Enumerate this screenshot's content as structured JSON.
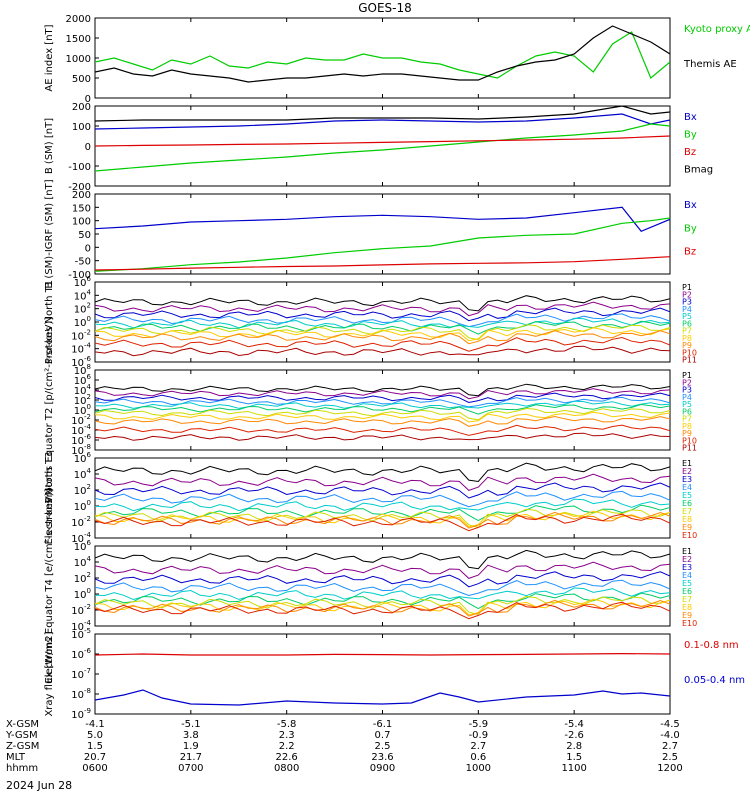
{
  "title": "GOES-18",
  "date_label": "2024 Jun 28",
  "footer": {
    "rows": [
      {
        "label": "X-GSM",
        "values": [
          "-4.1",
          "-5.1",
          "-5.8",
          "-6.1",
          "-5.9",
          "-5.4",
          "-4.5"
        ]
      },
      {
        "label": "Y-GSM",
        "values": [
          "5.0",
          "3.8",
          "2.3",
          "0.7",
          "-0.9",
          "-2.6",
          "-4.0"
        ]
      },
      {
        "label": "Z-GSM",
        "values": [
          "1.5",
          "1.9",
          "2.2",
          "2.5",
          "2.7",
          "2.8",
          "2.7"
        ]
      },
      {
        "label": "MLT",
        "values": [
          "20.7",
          "21.7",
          "22.6",
          "23.6",
          "0.6",
          "1.5",
          "2.5"
        ]
      },
      {
        "label": "hhmm",
        "values": [
          "0600",
          "0700",
          "0800",
          "0900",
          "1000",
          "1100",
          "1200"
        ]
      }
    ]
  },
  "chart_data": [
    {
      "id": "ae",
      "type": "line",
      "ylabel": "AE index [nT]",
      "ylim": [
        0,
        2000
      ],
      "yticks": [
        "0",
        "500",
        "1000",
        "1500",
        "2000"
      ],
      "x_range_hours": [
        6,
        12
      ],
      "series": [
        {
          "name": "Kyoto proxy AE",
          "color": "#00cc00",
          "x": [
            6.0,
            6.2,
            6.4,
            6.6,
            6.8,
            7.0,
            7.2,
            7.4,
            7.6,
            7.8,
            8.0,
            8.2,
            8.4,
            8.6,
            8.8,
            9.0,
            9.2,
            9.4,
            9.6,
            9.8,
            10.0,
            10.2,
            10.4,
            10.6,
            10.8,
            11.0,
            11.2,
            11.4,
            11.6,
            11.8,
            12.0
          ],
          "y": [
            900,
            1000,
            850,
            700,
            950,
            850,
            1050,
            800,
            750,
            900,
            850,
            1000,
            950,
            950,
            1100,
            1000,
            1000,
            900,
            850,
            700,
            600,
            500,
            800,
            1050,
            1150,
            1050,
            650,
            1350,
            1650,
            500,
            900
          ]
        },
        {
          "name": "Themis AE",
          "color": "#000000",
          "x": [
            6.0,
            6.2,
            6.4,
            6.6,
            6.8,
            7.0,
            7.2,
            7.4,
            7.6,
            7.8,
            8.0,
            8.2,
            8.4,
            8.6,
            8.8,
            9.0,
            9.2,
            9.4,
            9.6,
            9.8,
            10.0,
            10.2,
            10.4,
            10.6,
            10.8,
            11.0,
            11.2,
            11.4,
            11.6,
            11.8,
            12.0
          ],
          "y": [
            650,
            750,
            600,
            550,
            700,
            600,
            550,
            500,
            400,
            450,
            500,
            500,
            550,
            600,
            550,
            600,
            600,
            550,
            500,
            450,
            450,
            650,
            800,
            900,
            950,
            1100,
            1500,
            1800,
            1600,
            1400,
            1100
          ]
        }
      ]
    },
    {
      "id": "bfield",
      "type": "line",
      "ylabel": "B (SM) [nT]",
      "ylim": [
        -200,
        200
      ],
      "yticks": [
        "-200",
        "-100",
        "0",
        "100",
        "200"
      ],
      "x_range_hours": [
        6,
        12
      ],
      "series": [
        {
          "name": "Bx",
          "color": "#0000cc",
          "x": [
            6.0,
            6.5,
            7.0,
            7.5,
            8.0,
            8.5,
            9.0,
            9.5,
            10.0,
            10.5,
            11.0,
            11.5,
            11.8,
            12.0
          ],
          "y": [
            85,
            90,
            95,
            100,
            110,
            125,
            130,
            125,
            120,
            125,
            140,
            160,
            110,
            130
          ]
        },
        {
          "name": "By",
          "color": "#00cc00",
          "x": [
            6.0,
            6.5,
            7.0,
            7.5,
            8.0,
            8.5,
            9.0,
            9.5,
            10.0,
            10.5,
            11.0,
            11.5,
            11.8,
            12.0
          ],
          "y": [
            -125,
            -105,
            -85,
            -70,
            -55,
            -35,
            -20,
            0,
            20,
            40,
            55,
            75,
            110,
            100
          ]
        },
        {
          "name": "Bz",
          "color": "#dd0000",
          "x": [
            6.0,
            6.5,
            7.0,
            7.5,
            8.0,
            8.5,
            9.0,
            9.5,
            10.0,
            10.5,
            11.0,
            11.5,
            12.0
          ],
          "y": [
            0,
            3,
            5,
            8,
            10,
            14,
            18,
            22,
            26,
            30,
            34,
            40,
            50
          ]
        },
        {
          "name": "Bmag",
          "color": "#000000",
          "x": [
            6.0,
            6.5,
            7.0,
            7.5,
            8.0,
            8.5,
            9.0,
            9.5,
            10.0,
            10.5,
            11.0,
            11.5,
            11.8,
            12.0
          ],
          "y": [
            125,
            130,
            130,
            130,
            130,
            140,
            140,
            140,
            135,
            145,
            160,
            200,
            160,
            170
          ]
        }
      ]
    },
    {
      "id": "bigrf",
      "type": "line",
      "ylabel": "B (SM)-IGRF (SM) [nT]",
      "ylim": [
        -100,
        200
      ],
      "yticks": [
        "-100",
        "-50",
        "0",
        "50",
        "100",
        "150",
        "200"
      ],
      "x_range_hours": [
        6,
        12
      ],
      "series": [
        {
          "name": "Bx",
          "color": "#0000cc",
          "x": [
            6.0,
            6.5,
            7.0,
            7.5,
            8.0,
            8.5,
            9.0,
            9.5,
            10.0,
            10.5,
            11.0,
            11.5,
            11.7,
            12.0
          ],
          "y": [
            70,
            80,
            95,
            100,
            105,
            115,
            120,
            115,
            105,
            110,
            130,
            150,
            60,
            105
          ]
        },
        {
          "name": "By",
          "color": "#00cc00",
          "x": [
            6.0,
            6.5,
            7.0,
            7.5,
            8.0,
            8.5,
            9.0,
            9.5,
            10.0,
            10.5,
            11.0,
            11.5,
            11.8,
            12.0
          ],
          "y": [
            -90,
            -80,
            -65,
            -55,
            -40,
            -20,
            -5,
            5,
            35,
            45,
            50,
            90,
            100,
            110
          ]
        },
        {
          "name": "Bz",
          "color": "#dd0000",
          "x": [
            6.0,
            6.5,
            7.0,
            7.5,
            8.0,
            8.5,
            9.0,
            9.5,
            10.0,
            10.5,
            11.0,
            11.5,
            12.0
          ],
          "y": [
            -85,
            -82,
            -78,
            -75,
            -72,
            -70,
            -66,
            -62,
            -60,
            -58,
            -54,
            -45,
            -35
          ]
        }
      ]
    },
    {
      "id": "protons-north",
      "type": "line",
      "log": true,
      "ylabel": "Protons North T1",
      "ylim": [
        -6,
        6
      ],
      "ytick_exponents": [
        -6,
        -4,
        -2,
        0,
        2,
        4,
        6
      ],
      "x_range_hours": [
        6,
        12
      ],
      "series_names": [
        "P1",
        "P2",
        "P3",
        "P4",
        "P5",
        "P6",
        "P7",
        "P8",
        "P9",
        "P10",
        "P11"
      ],
      "series_colors": [
        "#000000",
        "#8b008b",
        "#0000cc",
        "#1e90ff",
        "#00cccc",
        "#00cc66",
        "#ccdd00",
        "#ffcc00",
        "#ff8800",
        "#dd2200",
        "#aa0000"
      ],
      "series_levels": [
        3.0,
        2.0,
        1.1,
        0.3,
        -0.3,
        -0.8,
        -1.3,
        -1.8,
        -2.3,
        -3.3,
        -4.5
      ]
    },
    {
      "id": "protons-equator",
      "type": "line",
      "log": true,
      "ylabel": "Protons Equator T2 [p/(cm²-s-sr-keV)]",
      "ylim": [
        -8,
        8
      ],
      "ytick_exponents": [
        -8,
        -6,
        -4,
        -2,
        0,
        2,
        4,
        6,
        8
      ],
      "x_range_hours": [
        6,
        12
      ],
      "series_names": [
        "P1",
        "P2",
        "P3",
        "P4",
        "P5",
        "P6",
        "P7",
        "P8",
        "P9",
        "P10",
        "P11"
      ],
      "series_colors": [
        "#000000",
        "#8b008b",
        "#0000cc",
        "#1e90ff",
        "#00cccc",
        "#00cc66",
        "#ccdd00",
        "#ffcc00",
        "#ff8800",
        "#dd2200",
        "#aa0000"
      ],
      "series_levels": [
        4.2,
        3.3,
        2.4,
        1.6,
        0.9,
        0.2,
        -0.6,
        -1.4,
        -2.3,
        -4.0,
        -5.5
      ]
    },
    {
      "id": "electrons-north",
      "type": "line",
      "log": true,
      "ylabel": "Electrons North T3",
      "ylim": [
        -4,
        6
      ],
      "ytick_exponents": [
        -4,
        -2,
        0,
        2,
        4,
        6
      ],
      "x_range_hours": [
        6,
        12
      ],
      "series_names": [
        "E1",
        "E2",
        "E3",
        "E4",
        "E5",
        "E6",
        "E7",
        "E8",
        "E9",
        "E10"
      ],
      "series_colors": [
        "#000000",
        "#8b008b",
        "#0000cc",
        "#1e90ff",
        "#00cccc",
        "#00cc66",
        "#ccdd00",
        "#ffcc00",
        "#ff8800",
        "#dd2200"
      ],
      "series_levels": [
        4.4,
        3.0,
        1.9,
        0.9,
        0.0,
        -0.8,
        -1.3,
        -1.6,
        -1.8,
        -2.0
      ]
    },
    {
      "id": "electrons-equator",
      "type": "line",
      "log": true,
      "ylabel": "Electrons Equator T4 [e/(cm²-s-sr-keV)]",
      "ylim": [
        -4,
        6
      ],
      "ytick_exponents": [
        -4,
        -2,
        0,
        2,
        4,
        6
      ],
      "x_range_hours": [
        6,
        12
      ],
      "series_names": [
        "E1",
        "E2",
        "E3",
        "E4",
        "E5",
        "E6",
        "E7",
        "E8",
        "E9",
        "E10"
      ],
      "series_colors": [
        "#000000",
        "#8b008b",
        "#0000cc",
        "#1e90ff",
        "#00cccc",
        "#00cc66",
        "#ccdd00",
        "#ffcc00",
        "#ff8800",
        "#dd2200"
      ],
      "series_levels": [
        4.5,
        3.0,
        1.8,
        0.8,
        -0.1,
        -0.8,
        -1.2,
        -1.6,
        -1.8,
        -2.0
      ]
    },
    {
      "id": "xray",
      "type": "line",
      "log": true,
      "ylabel": "Xray flux [W/m2]",
      "ylim": [
        -9,
        -5
      ],
      "ytick_exponents": [
        -9,
        -8,
        -7,
        -6,
        -5
      ],
      "x_range_hours": [
        6,
        12
      ],
      "series": [
        {
          "name": "0.1-0.8 nm",
          "color": "#dd0000",
          "x": [
            6.0,
            6.5,
            7.0,
            7.5,
            8.0,
            8.5,
            9.0,
            9.5,
            10.0,
            10.5,
            11.0,
            11.5,
            12.0
          ],
          "y": [
            -6.05,
            -6.0,
            -6.05,
            -6.05,
            -6.05,
            -6.02,
            -6.03,
            -6.05,
            -6.03,
            -6.02,
            -6.0,
            -5.98,
            -6.0
          ]
        },
        {
          "name": "0.05-0.4 nm",
          "color": "#0000cc",
          "x": [
            6.0,
            6.3,
            6.5,
            6.7,
            7.0,
            7.5,
            8.0,
            8.5,
            9.0,
            9.3,
            9.6,
            9.8,
            10.0,
            10.5,
            11.0,
            11.3,
            11.5,
            11.7,
            12.0
          ],
          "y": [
            -8.3,
            -8.05,
            -7.8,
            -8.2,
            -8.5,
            -8.55,
            -8.35,
            -8.45,
            -8.5,
            -8.45,
            -7.95,
            -8.15,
            -8.4,
            -8.15,
            -8.05,
            -7.85,
            -8.0,
            -7.95,
            -8.1
          ]
        }
      ]
    }
  ]
}
